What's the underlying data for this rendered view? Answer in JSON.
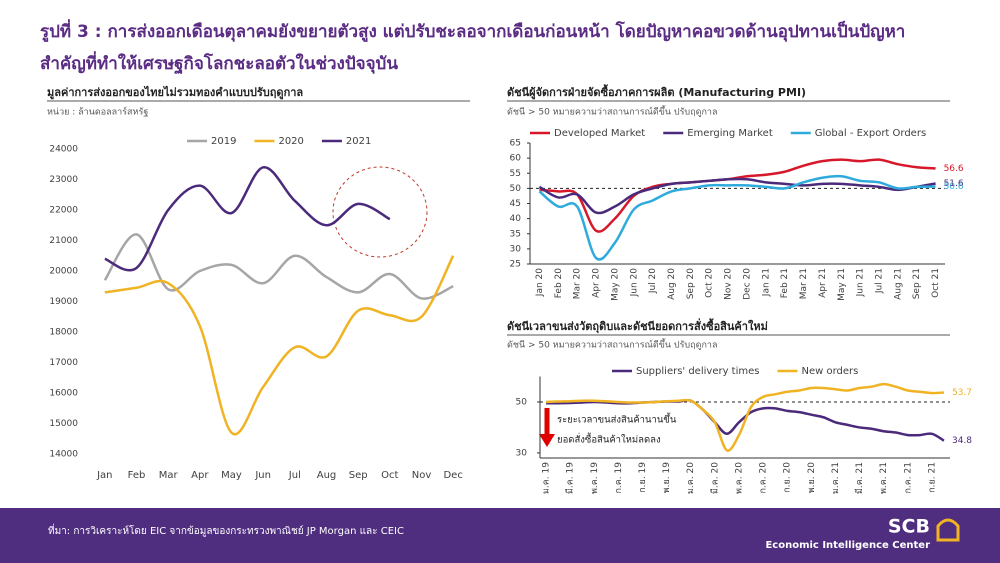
{
  "header": {
    "title": [
      "รูปที่ 3 : การส่งออกเดือนตุลาคมยังขยายตัวสูง แต่ปรับชะลอจากเดือนก่อนหน้า โดยปัญหาคอขวดด้านอุปทานเป็นปัญหา",
      "สำคัญที่ทำให้เศรษฐกิจโลกชะลอตัวในช่วงปัจจุบัน"
    ]
  },
  "chart_data": [
    {
      "type": "line",
      "title": "มูลค่าการส่งออกของไทยไม่รวมทองคำแบบปรับฤดูกาล",
      "subtitle": "หน่วย : ล้านดอลลาร์สหรัฐ",
      "categories": [
        "Jan",
        "Feb",
        "Mar",
        "Apr",
        "May",
        "Jun",
        "Jul",
        "Aug",
        "Sep",
        "Oct",
        "Nov",
        "Dec"
      ],
      "series": [
        {
          "name": "2019",
          "color": "#a6a6a6",
          "values": [
            19700,
            21200,
            19400,
            20000,
            20200,
            19600,
            20500,
            19800,
            19300,
            19900,
            19100,
            19500
          ]
        },
        {
          "name": "2020",
          "color": "#f0b323",
          "values": [
            19300,
            19450,
            19600,
            18200,
            14700,
            16200,
            17500,
            17200,
            18700,
            18550,
            18500,
            20500
          ]
        },
        {
          "name": "2021",
          "color": "#4b2a7b",
          "values": [
            20400,
            20100,
            22000,
            22800,
            21900,
            23400,
            22300,
            21500,
            22200,
            21700,
            null,
            null
          ]
        }
      ],
      "ylim": [
        14000,
        24000
      ],
      "yticks": [
        14000,
        15000,
        16000,
        17000,
        18000,
        19000,
        20000,
        21000,
        22000,
        23000,
        24000
      ],
      "grid": false,
      "legend": "top"
    },
    {
      "type": "line",
      "title": "ดัชนีผู้จัดการฝ่ายจัดซื้อภาคการผลิต (Manufacturing PMI)",
      "subtitle": "ดัชนี > 50 หมายความว่าสถานการณ์ดีขึ้น ปรับฤดูกาล",
      "categories": [
        "Jan 20",
        "Feb 20",
        "Mar 20",
        "Apr 20",
        "May 20",
        "Jun 20",
        "Jul 20",
        "Aug 20",
        "Sep 20",
        "Oct 20",
        "Nov 20",
        "Dec 20",
        "Jan 21",
        "Feb 21",
        "Mar 21",
        "Apr 21",
        "May 21",
        "Jun 21",
        "Jul 21",
        "Aug 21",
        "Sep 21",
        "Oct 21"
      ],
      "series": [
        {
          "name": "Developed Market",
          "color": "#d7182a",
          "values": [
            49.5,
            49,
            48,
            36,
            40,
            47.5,
            50.5,
            51.5,
            52,
            52.5,
            53,
            54,
            54.5,
            55.5,
            57.5,
            59,
            59.5,
            59,
            59.5,
            58,
            57,
            56.6
          ]
        },
        {
          "name": "Emerging Market",
          "color": "#4b2a7b",
          "values": [
            50.5,
            47,
            48,
            42,
            44,
            48,
            50,
            51.5,
            52,
            52.5,
            53,
            53,
            52,
            51.5,
            51,
            51.5,
            51.5,
            51,
            50.5,
            49.5,
            50.5,
            51.6
          ]
        },
        {
          "name": "Global - Export Orders",
          "color": "#2eaadc",
          "values": [
            49,
            44,
            44,
            27,
            32,
            43,
            46,
            49,
            50,
            51,
            51,
            51,
            50.5,
            50,
            52,
            53.5,
            54,
            52.5,
            52,
            50,
            50.5,
            50.6
          ]
        }
      ],
      "ylim": [
        25,
        65
      ],
      "yticks": [
        25,
        30,
        35,
        40,
        45,
        50,
        55,
        60,
        65
      ],
      "ref_line": 50,
      "grid": false,
      "legend": "top",
      "end_labels": true
    },
    {
      "type": "line",
      "title": "ดัชนีเวลาขนส่งวัตถุดิบและดัชนียอดการสั่งซื้อสินค้าใหม่",
      "subtitle": "ดัชนี > 50 หมายความว่าสถานการณ์ดีขึ้น ปรับฤดูกาล",
      "categories": [
        "ม.ค. 19",
        null,
        "มี.ค. 19",
        null,
        "พ.ค. 19",
        null,
        "ก.ค. 19",
        null,
        "ก.ย. 19",
        null,
        "พ.ย. 19",
        null,
        "ม.ค. 20",
        null,
        "มี.ค. 20",
        null,
        "พ.ค. 20",
        null,
        "ก.ค. 20",
        null,
        "ก.ย. 20",
        null,
        "พ.ย. 20",
        null,
        "ม.ค. 21",
        null,
        "มี.ค. 21",
        null,
        "พ.ค. 21",
        null,
        "ก.ค. 21",
        null,
        "ก.ย. 21",
        null
      ],
      "series": [
        {
          "name": "Suppliers' delivery times",
          "color": "#4b2a7b",
          "values": [
            49.5,
            49.5,
            49.6,
            49.8,
            50,
            49.8,
            49.5,
            49.5,
            49.8,
            50,
            50.2,
            50.2,
            50.5,
            47,
            42,
            37.5,
            42,
            46,
            47.5,
            47.5,
            46.5,
            46,
            45,
            44,
            42,
            41,
            40,
            39.5,
            38.5,
            38,
            37,
            37,
            37.5,
            34.8
          ]
        },
        {
          "name": "New orders",
          "color": "#f0b323",
          "values": [
            50,
            50.2,
            50.3,
            50.5,
            50.5,
            50.3,
            50,
            49.8,
            49.8,
            50,
            50.3,
            50.5,
            50.5,
            47,
            42,
            31,
            37,
            48,
            52,
            53,
            54,
            54.5,
            55.5,
            55.5,
            55,
            54.5,
            55.5,
            56,
            57,
            56,
            54.5,
            54,
            53.5,
            53.7
          ]
        }
      ],
      "ylim": [
        28,
        60
      ],
      "yticks": [
        30,
        50
      ],
      "ref_line": 50,
      "grid": false,
      "legend": "top",
      "end_labels": true,
      "annotations": [
        "ระยะเวลาขนส่งสินค้านานขึ้น",
        "ยอดสั่งซื้อสินค้าใหม่ลดลง"
      ]
    }
  ],
  "footer": {
    "source": "ที่มา: การวิเคราะห์โดย EIC จากข้อมูลของกระทรวงพาณิชย์ JP Morgan และ CEIC",
    "logo": "SCB",
    "logo_sub": "Economic Intelligence Center"
  }
}
